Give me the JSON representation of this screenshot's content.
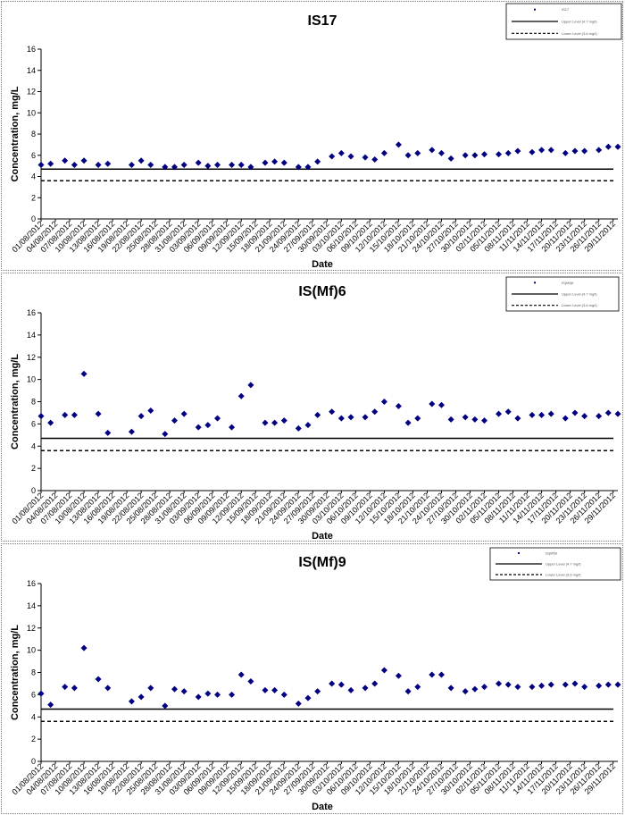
{
  "dates": [
    "01/08/2012",
    "04/08/2012",
    "07/08/2012",
    "10/08/2012",
    "13/08/2012",
    "16/08/2012",
    "19/08/2012",
    "22/08/2012",
    "25/08/2012",
    "28/08/2012",
    "31/08/2012",
    "03/09/2012",
    "06/09/2012",
    "09/09/2012",
    "12/09/2012",
    "15/09/2012",
    "18/09/2012",
    "21/09/2012",
    "24/09/2012",
    "27/09/2012",
    "30/09/2012",
    "03/10/2012",
    "06/10/2012",
    "09/10/2012",
    "12/10/2012",
    "15/10/2012",
    "18/10/2012",
    "21/10/2012",
    "24/10/2012",
    "27/10/2012",
    "30/10/2012",
    "02/11/2012",
    "05/11/2012",
    "08/11/2012",
    "11/11/2012",
    "14/11/2012",
    "17/11/2012",
    "20/11/2012",
    "23/11/2012",
    "26/11/2012",
    "29/11/2012"
  ],
  "colors": {
    "marker": "#000080",
    "line": "#000000",
    "background": "#ffffff"
  },
  "chart_data": [
    {
      "type": "scatter",
      "title": "IS17",
      "xlabel": "Date",
      "ylabel": "Concentration, mg/L",
      "ylim": [
        0,
        16
      ],
      "yticks": [
        0,
        2,
        4,
        6,
        8,
        10,
        12,
        14,
        16
      ],
      "grid": false,
      "legend_position": "top-right",
      "legend": [
        "IS17",
        "Upper Level (4.7 mg/l)",
        "Lower Level (3.6 mg/l)"
      ],
      "reference_lines": [
        {
          "name": "Upper Level (4.7 mg/l)",
          "y": 4.7,
          "style": "solid"
        },
        {
          "name": "Lower Level (3.6 mg/l)",
          "y": 3.6,
          "style": "dashed"
        }
      ],
      "points": [
        {
          "x": "01/08/2012",
          "y": 5.1
        },
        {
          "x": "03/08/2012",
          "y": 5.2
        },
        {
          "x": "06/08/2012",
          "y": 5.5
        },
        {
          "x": "08/08/2012",
          "y": 5.1
        },
        {
          "x": "10/08/2012",
          "y": 5.5
        },
        {
          "x": "13/08/2012",
          "y": 5.1
        },
        {
          "x": "15/08/2012",
          "y": 5.2
        },
        {
          "x": "20/08/2012",
          "y": 5.1
        },
        {
          "x": "22/08/2012",
          "y": 5.5
        },
        {
          "x": "24/08/2012",
          "y": 5.1
        },
        {
          "x": "27/08/2012",
          "y": 4.9
        },
        {
          "x": "29/08/2012",
          "y": 4.9
        },
        {
          "x": "31/08/2012",
          "y": 5.1
        },
        {
          "x": "03/09/2012",
          "y": 5.3
        },
        {
          "x": "05/09/2012",
          "y": 5.0
        },
        {
          "x": "07/09/2012",
          "y": 5.1
        },
        {
          "x": "10/09/2012",
          "y": 5.1
        },
        {
          "x": "12/09/2012",
          "y": 5.1
        },
        {
          "x": "14/09/2012",
          "y": 4.9
        },
        {
          "x": "17/09/2012",
          "y": 5.3
        },
        {
          "x": "19/09/2012",
          "y": 5.4
        },
        {
          "x": "21/09/2012",
          "y": 5.3
        },
        {
          "x": "24/09/2012",
          "y": 4.9
        },
        {
          "x": "26/09/2012",
          "y": 4.9
        },
        {
          "x": "28/09/2012",
          "y": 5.4
        },
        {
          "x": "01/10/2012",
          "y": 5.9
        },
        {
          "x": "03/10/2012",
          "y": 6.2
        },
        {
          "x": "05/10/2012",
          "y": 5.9
        },
        {
          "x": "08/10/2012",
          "y": 5.8
        },
        {
          "x": "10/10/2012",
          "y": 5.6
        },
        {
          "x": "12/10/2012",
          "y": 6.2
        },
        {
          "x": "15/10/2012",
          "y": 7.0
        },
        {
          "x": "17/10/2012",
          "y": 6.0
        },
        {
          "x": "19/10/2012",
          "y": 6.2
        },
        {
          "x": "22/10/2012",
          "y": 6.5
        },
        {
          "x": "24/10/2012",
          "y": 6.2
        },
        {
          "x": "26/10/2012",
          "y": 5.7
        },
        {
          "x": "29/10/2012",
          "y": 6.0
        },
        {
          "x": "31/10/2012",
          "y": 6.0
        },
        {
          "x": "02/11/2012",
          "y": 6.1
        },
        {
          "x": "05/11/2012",
          "y": 6.1
        },
        {
          "x": "07/11/2012",
          "y": 6.2
        },
        {
          "x": "09/11/2012",
          "y": 6.4
        },
        {
          "x": "12/11/2012",
          "y": 6.3
        },
        {
          "x": "14/11/2012",
          "y": 6.5
        },
        {
          "x": "16/11/2012",
          "y": 6.5
        },
        {
          "x": "19/11/2012",
          "y": 6.2
        },
        {
          "x": "21/11/2012",
          "y": 6.4
        },
        {
          "x": "23/11/2012",
          "y": 6.4
        },
        {
          "x": "26/11/2012",
          "y": 6.5
        },
        {
          "x": "28/11/2012",
          "y": 6.8
        },
        {
          "x": "30/11/2012",
          "y": 6.8
        }
      ]
    },
    {
      "type": "scatter",
      "title": "IS(Mf)6",
      "xlabel": "Date",
      "ylabel": "Concentration, mg/L",
      "ylim": [
        0,
        16
      ],
      "yticks": [
        0,
        2,
        4,
        6,
        8,
        10,
        12,
        14,
        16
      ],
      "grid": false,
      "legend_position": "top-right",
      "legend": [
        "IS(Mf)6",
        "Upper Level (4.7 mg/l)",
        "Lower Level (3.6 mg/l)"
      ],
      "reference_lines": [
        {
          "name": "Upper Level (4.7 mg/l)",
          "y": 4.7,
          "style": "solid"
        },
        {
          "name": "Lower Level (3.6 mg/l)",
          "y": 3.6,
          "style": "dashed"
        }
      ],
      "points": [
        {
          "x": "01/08/2012",
          "y": 6.7
        },
        {
          "x": "03/08/2012",
          "y": 6.1
        },
        {
          "x": "06/08/2012",
          "y": 6.8
        },
        {
          "x": "08/08/2012",
          "y": 6.8
        },
        {
          "x": "10/08/2012",
          "y": 10.5
        },
        {
          "x": "13/08/2012",
          "y": 6.9
        },
        {
          "x": "15/08/2012",
          "y": 5.2
        },
        {
          "x": "20/08/2012",
          "y": 5.3
        },
        {
          "x": "22/08/2012",
          "y": 6.7
        },
        {
          "x": "24/08/2012",
          "y": 7.2
        },
        {
          "x": "27/08/2012",
          "y": 5.1
        },
        {
          "x": "29/08/2012",
          "y": 6.3
        },
        {
          "x": "31/08/2012",
          "y": 6.9
        },
        {
          "x": "03/09/2012",
          "y": 5.7
        },
        {
          "x": "05/09/2012",
          "y": 5.9
        },
        {
          "x": "07/09/2012",
          "y": 6.5
        },
        {
          "x": "10/09/2012",
          "y": 5.7
        },
        {
          "x": "12/09/2012",
          "y": 8.5
        },
        {
          "x": "14/09/2012",
          "y": 9.5
        },
        {
          "x": "17/09/2012",
          "y": 6.1
        },
        {
          "x": "19/09/2012",
          "y": 6.1
        },
        {
          "x": "21/09/2012",
          "y": 6.3
        },
        {
          "x": "24/09/2012",
          "y": 5.6
        },
        {
          "x": "26/09/2012",
          "y": 5.9
        },
        {
          "x": "28/09/2012",
          "y": 6.8
        },
        {
          "x": "01/10/2012",
          "y": 7.1
        },
        {
          "x": "03/10/2012",
          "y": 6.5
        },
        {
          "x": "05/10/2012",
          "y": 6.6
        },
        {
          "x": "08/10/2012",
          "y": 6.6
        },
        {
          "x": "10/10/2012",
          "y": 7.1
        },
        {
          "x": "12/10/2012",
          "y": 8.0
        },
        {
          "x": "15/10/2012",
          "y": 7.6
        },
        {
          "x": "17/10/2012",
          "y": 6.1
        },
        {
          "x": "19/10/2012",
          "y": 6.5
        },
        {
          "x": "22/10/2012",
          "y": 7.8
        },
        {
          "x": "24/10/2012",
          "y": 7.7
        },
        {
          "x": "26/10/2012",
          "y": 6.4
        },
        {
          "x": "29/10/2012",
          "y": 6.6
        },
        {
          "x": "31/10/2012",
          "y": 6.4
        },
        {
          "x": "02/11/2012",
          "y": 6.3
        },
        {
          "x": "05/11/2012",
          "y": 6.9
        },
        {
          "x": "07/11/2012",
          "y": 7.1
        },
        {
          "x": "09/11/2012",
          "y": 6.5
        },
        {
          "x": "12/11/2012",
          "y": 6.8
        },
        {
          "x": "14/11/2012",
          "y": 6.8
        },
        {
          "x": "16/11/2012",
          "y": 6.9
        },
        {
          "x": "19/11/2012",
          "y": 6.5
        },
        {
          "x": "21/11/2012",
          "y": 7.0
        },
        {
          "x": "23/11/2012",
          "y": 6.7
        },
        {
          "x": "26/11/2012",
          "y": 6.7
        },
        {
          "x": "28/11/2012",
          "y": 7.0
        },
        {
          "x": "30/11/2012",
          "y": 6.9
        }
      ]
    },
    {
      "type": "scatter",
      "title": "IS(Mf)9",
      "xlabel": "Date",
      "ylabel": "Concentration, mg/L",
      "ylim": [
        0,
        16
      ],
      "yticks": [
        0,
        2,
        4,
        6,
        8,
        10,
        12,
        14,
        16
      ],
      "grid": false,
      "legend_position": "top-right",
      "legend": [
        "IS(Mf)9",
        "Upper Level (4.7 mg/l)",
        "Lower Level (3.6 mg/l)"
      ],
      "reference_lines": [
        {
          "name": "Upper Level (4.7 mg/l)",
          "y": 4.7,
          "style": "solid"
        },
        {
          "name": "Lower Level (3.6 mg/l)",
          "y": 3.6,
          "style": "dashed"
        }
      ],
      "points": [
        {
          "x": "01/08/2012",
          "y": 6.1
        },
        {
          "x": "03/08/2012",
          "y": 5.1
        },
        {
          "x": "06/08/2012",
          "y": 6.7
        },
        {
          "x": "08/08/2012",
          "y": 6.6
        },
        {
          "x": "10/08/2012",
          "y": 10.2
        },
        {
          "x": "13/08/2012",
          "y": 7.4
        },
        {
          "x": "15/08/2012",
          "y": 6.6
        },
        {
          "x": "20/08/2012",
          "y": 5.4
        },
        {
          "x": "22/08/2012",
          "y": 5.8
        },
        {
          "x": "24/08/2012",
          "y": 6.6
        },
        {
          "x": "27/08/2012",
          "y": 5.0
        },
        {
          "x": "29/08/2012",
          "y": 6.5
        },
        {
          "x": "31/08/2012",
          "y": 6.3
        },
        {
          "x": "03/09/2012",
          "y": 5.8
        },
        {
          "x": "05/09/2012",
          "y": 6.1
        },
        {
          "x": "07/09/2012",
          "y": 6.0
        },
        {
          "x": "10/09/2012",
          "y": 6.0
        },
        {
          "x": "12/09/2012",
          "y": 7.8
        },
        {
          "x": "14/09/2012",
          "y": 7.2
        },
        {
          "x": "17/09/2012",
          "y": 6.4
        },
        {
          "x": "19/09/2012",
          "y": 6.4
        },
        {
          "x": "21/09/2012",
          "y": 6.0
        },
        {
          "x": "24/09/2012",
          "y": 5.2
        },
        {
          "x": "26/09/2012",
          "y": 5.7
        },
        {
          "x": "28/09/2012",
          "y": 6.3
        },
        {
          "x": "01/10/2012",
          "y": 7.0
        },
        {
          "x": "03/10/2012",
          "y": 6.9
        },
        {
          "x": "05/10/2012",
          "y": 6.4
        },
        {
          "x": "08/10/2012",
          "y": 6.6
        },
        {
          "x": "10/10/2012",
          "y": 7.0
        },
        {
          "x": "12/10/2012",
          "y": 8.2
        },
        {
          "x": "15/10/2012",
          "y": 7.7
        },
        {
          "x": "17/10/2012",
          "y": 6.3
        },
        {
          "x": "19/10/2012",
          "y": 6.7
        },
        {
          "x": "22/10/2012",
          "y": 7.8
        },
        {
          "x": "24/10/2012",
          "y": 7.8
        },
        {
          "x": "26/10/2012",
          "y": 6.6
        },
        {
          "x": "29/10/2012",
          "y": 6.3
        },
        {
          "x": "31/10/2012",
          "y": 6.5
        },
        {
          "x": "02/11/2012",
          "y": 6.7
        },
        {
          "x": "05/11/2012",
          "y": 7.0
        },
        {
          "x": "07/11/2012",
          "y": 6.9
        },
        {
          "x": "09/11/2012",
          "y": 6.7
        },
        {
          "x": "12/11/2012",
          "y": 6.7
        },
        {
          "x": "14/11/2012",
          "y": 6.8
        },
        {
          "x": "16/11/2012",
          "y": 6.9
        },
        {
          "x": "19/11/2012",
          "y": 6.9
        },
        {
          "x": "21/11/2012",
          "y": 7.0
        },
        {
          "x": "23/11/2012",
          "y": 6.7
        },
        {
          "x": "26/11/2012",
          "y": 6.8
        },
        {
          "x": "28/11/2012",
          "y": 6.9
        },
        {
          "x": "30/11/2012",
          "y": 6.9
        }
      ]
    }
  ]
}
